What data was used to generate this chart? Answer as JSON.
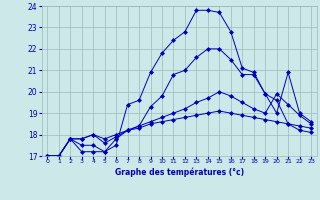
{
  "xlabel": "Graphe des températures (°c)",
  "bg_color": "#cce8e8",
  "grid_color": "#99bbbb",
  "line_color": "#0000bb",
  "xlim": [
    -0.5,
    23.5
  ],
  "ylim": [
    17,
    24
  ],
  "yticks": [
    17,
    18,
    19,
    20,
    21,
    22,
    23,
    24
  ],
  "xticks": [
    0,
    1,
    2,
    3,
    4,
    5,
    6,
    7,
    8,
    9,
    10,
    11,
    12,
    13,
    14,
    15,
    16,
    17,
    18,
    19,
    20,
    21,
    22,
    23
  ],
  "series": [
    {
      "x": [
        0,
        1,
        2,
        3,
        4,
        5,
        6,
        7,
        8,
        9,
        10,
        11,
        12,
        13,
        14,
        15,
        16,
        17,
        18,
        19,
        20,
        21,
        22,
        23
      ],
      "y": [
        17.0,
        17.0,
        17.8,
        17.5,
        17.5,
        17.2,
        17.5,
        19.4,
        19.6,
        20.9,
        21.8,
        22.4,
        22.8,
        23.8,
        23.8,
        23.7,
        22.8,
        21.1,
        20.9,
        19.9,
        19.6,
        18.5,
        18.2,
        18.1
      ]
    },
    {
      "x": [
        0,
        1,
        2,
        3,
        4,
        5,
        6,
        7,
        8,
        9,
        10,
        11,
        12,
        13,
        14,
        15,
        16,
        17,
        18,
        19,
        20,
        21,
        22,
        23
      ],
      "y": [
        17.0,
        17.0,
        17.8,
        17.2,
        17.2,
        17.2,
        17.8,
        18.2,
        18.4,
        19.3,
        19.8,
        20.8,
        21.0,
        21.6,
        22.0,
        22.0,
        21.5,
        20.8,
        20.8,
        19.9,
        19.0,
        20.9,
        19.0,
        18.6
      ]
    },
    {
      "x": [
        0,
        1,
        2,
        3,
        4,
        5,
        6,
        7,
        8,
        9,
        10,
        11,
        12,
        13,
        14,
        15,
        16,
        17,
        18,
        19,
        20,
        21,
        22,
        23
      ],
      "y": [
        17.0,
        17.0,
        17.8,
        17.8,
        18.0,
        17.6,
        17.9,
        18.2,
        18.4,
        18.6,
        18.8,
        19.0,
        19.2,
        19.5,
        19.7,
        20.0,
        19.8,
        19.5,
        19.2,
        19.0,
        19.9,
        19.4,
        18.9,
        18.5
      ]
    },
    {
      "x": [
        0,
        1,
        2,
        3,
        4,
        5,
        6,
        7,
        8,
        9,
        10,
        11,
        12,
        13,
        14,
        15,
        16,
        17,
        18,
        19,
        20,
        21,
        22,
        23
      ],
      "y": [
        17.0,
        17.0,
        17.8,
        17.8,
        18.0,
        17.8,
        18.0,
        18.2,
        18.3,
        18.5,
        18.6,
        18.7,
        18.8,
        18.9,
        19.0,
        19.1,
        19.0,
        18.9,
        18.8,
        18.7,
        18.6,
        18.5,
        18.4,
        18.3
      ]
    }
  ]
}
